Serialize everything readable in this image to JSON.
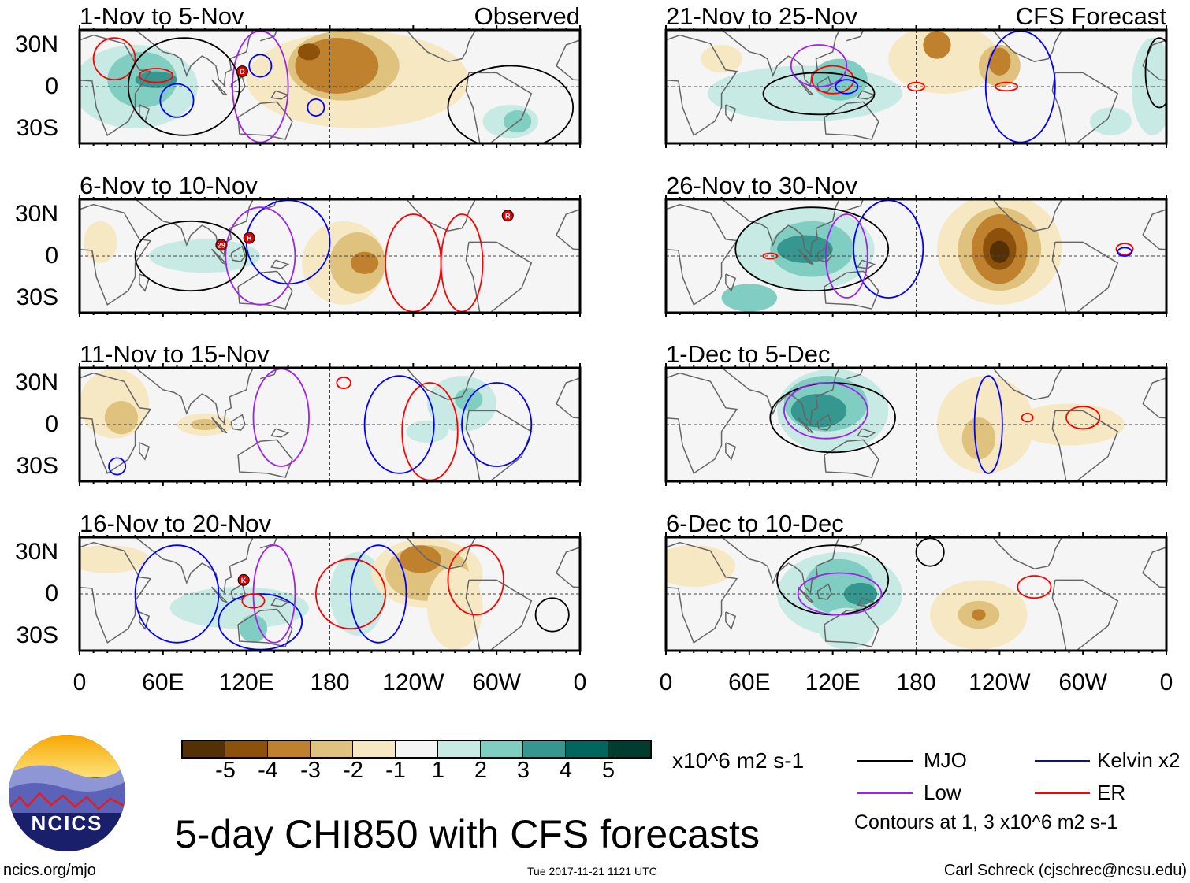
{
  "colorbar": {
    "colors": [
      "#543005",
      "#8c510a",
      "#bf812d",
      "#dfc27d",
      "#f6e8c3",
      "#f5f5f5",
      "#c7eae5",
      "#80cdc1",
      "#35978f",
      "#01665e",
      "#003c30"
    ],
    "labels": [
      "-5",
      "-4",
      "-3",
      "-2",
      "-1",
      "1",
      "2",
      "3",
      "4",
      "5"
    ],
    "units": "x10^6 m2 s-1"
  },
  "lat_labels": [
    "30N",
    "0",
    "30S"
  ],
  "lon_labels": [
    "0",
    "60E",
    "120E",
    "180",
    "120W",
    "60W",
    "0"
  ],
  "legend": {
    "mjo": {
      "label": "MJO",
      "color": "#000000"
    },
    "low": {
      "label": "Low",
      "color": "#a020f0"
    },
    "kelvin": {
      "label": "Kelvin x2",
      "color": "#0000ff"
    },
    "er": {
      "label": "ER",
      "color": "#ff0000"
    },
    "note": "Contours at 1, 3 x10^6 m2 s-1"
  },
  "title": "5-day CHI850 with CFS forecasts",
  "logo_text": "NCICS",
  "footer": {
    "url": "ncics.org/mjo",
    "timestamp": "Tue 2017-11-21 1121 UTC",
    "author": "Carl Schreck (cjschrec@ncsu.edu)"
  },
  "panels": [
    {
      "title": "1-Nov to 5-Nov",
      "tag": "Observed",
      "blobs": [
        [
          40,
          0,
          45,
          30,
          1
        ],
        [
          45,
          5,
          25,
          20,
          2
        ],
        [
          55,
          5,
          15,
          6,
          3
        ],
        [
          200,
          5,
          80,
          35,
          -1
        ],
        [
          190,
          15,
          40,
          25,
          -2
        ],
        [
          185,
          15,
          30,
          20,
          -3
        ],
        [
          165,
          25,
          8,
          6,
          -4
        ],
        [
          310,
          -25,
          20,
          12,
          1
        ],
        [
          315,
          -25,
          10,
          8,
          2
        ]
      ],
      "contours": [
        [
          55,
          8,
          12,
          5,
          "er"
        ],
        [
          25,
          20,
          15,
          15,
          "er"
        ],
        [
          70,
          -10,
          12,
          12,
          "kelvin"
        ],
        [
          130,
          0,
          20,
          40,
          "low"
        ],
        [
          130,
          15,
          8,
          8,
          "kelvin"
        ],
        [
          170,
          -15,
          6,
          6,
          "kelvin"
        ],
        [
          75,
          0,
          40,
          35,
          "mjo"
        ],
        [
          310,
          -15,
          45,
          30,
          "mjo"
        ]
      ],
      "storms": [
        [
          117,
          11,
          "D"
        ]
      ]
    },
    {
      "title": "6-Nov to 10-Nov",
      "tag": "",
      "blobs": [
        [
          90,
          0,
          40,
          12,
          1
        ],
        [
          15,
          10,
          12,
          15,
          -1
        ],
        [
          190,
          -5,
          30,
          30,
          -1
        ],
        [
          200,
          -5,
          20,
          22,
          -2
        ],
        [
          205,
          -5,
          10,
          8,
          -3
        ]
      ],
      "contours": [
        [
          240,
          -5,
          20,
          35,
          "er"
        ],
        [
          275,
          -5,
          15,
          35,
          "er"
        ],
        [
          150,
          10,
          30,
          30,
          "kelvin"
        ],
        [
          130,
          0,
          25,
          35,
          "low"
        ],
        [
          80,
          0,
          40,
          25,
          "mjo"
        ]
      ],
      "storms": [
        [
          102,
          8,
          "29"
        ],
        [
          122,
          13,
          "H"
        ],
        [
          308,
          29,
          "R"
        ]
      ]
    },
    {
      "title": "11-Nov to 15-Nov",
      "tag": "",
      "blobs": [
        [
          25,
          15,
          25,
          25,
          -1
        ],
        [
          30,
          5,
          12,
          12,
          -2
        ],
        [
          90,
          0,
          20,
          8,
          -1
        ],
        [
          90,
          0,
          10,
          4,
          -2
        ],
        [
          275,
          15,
          25,
          20,
          1
        ],
        [
          280,
          18,
          10,
          8,
          2
        ],
        [
          250,
          -5,
          15,
          8,
          1
        ]
      ],
      "contours": [
        [
          252,
          -5,
          20,
          35,
          "er"
        ],
        [
          230,
          0,
          25,
          35,
          "kelvin"
        ],
        [
          300,
          0,
          25,
          30,
          "kelvin"
        ],
        [
          145,
          5,
          20,
          35,
          "low"
        ],
        [
          190,
          30,
          5,
          4,
          "er"
        ],
        [
          27,
          -30,
          6,
          6,
          "kelvin"
        ]
      ],
      "storms": []
    },
    {
      "title": "16-Nov to 20-Nov",
      "tag": "",
      "blobs": [
        [
          115,
          -10,
          50,
          15,
          1
        ],
        [
          125,
          -25,
          10,
          10,
          2
        ],
        [
          200,
          0,
          20,
          30,
          1
        ],
        [
          250,
          15,
          40,
          25,
          -1
        ],
        [
          250,
          15,
          30,
          20,
          -2
        ],
        [
          245,
          25,
          15,
          10,
          -3
        ],
        [
          270,
          -10,
          20,
          30,
          -1
        ],
        [
          20,
          25,
          30,
          10,
          -1
        ]
      ],
      "contours": [
        [
          70,
          0,
          30,
          35,
          "kelvin"
        ],
        [
          130,
          -20,
          30,
          20,
          "kelvin"
        ],
        [
          140,
          0,
          15,
          35,
          "low"
        ],
        [
          195,
          0,
          25,
          25,
          "er"
        ],
        [
          215,
          0,
          20,
          35,
          "kelvin"
        ],
        [
          285,
          10,
          20,
          25,
          "er"
        ],
        [
          340,
          -15,
          12,
          12,
          "mjo"
        ],
        [
          125,
          -5,
          8,
          5,
          "er"
        ]
      ],
      "storms": [
        [
          118,
          10,
          "K"
        ]
      ]
    },
    {
      "title": "21-Nov to 25-Nov",
      "tag": "CFS Forecast",
      "blobs": [
        [
          100,
          -5,
          70,
          20,
          1
        ],
        [
          125,
          5,
          20,
          15,
          2
        ],
        [
          350,
          0,
          15,
          35,
          1
        ],
        [
          320,
          -25,
          15,
          10,
          1
        ],
        [
          200,
          20,
          40,
          25,
          -1
        ],
        [
          240,
          15,
          15,
          15,
          -2
        ],
        [
          240,
          18,
          8,
          10,
          -3
        ],
        [
          195,
          30,
          10,
          10,
          -3
        ],
        [
          40,
          20,
          15,
          10,
          -1
        ]
      ],
      "contours": [
        [
          255,
          0,
          25,
          40,
          "kelvin"
        ],
        [
          245,
          0,
          8,
          3,
          "er"
        ],
        [
          180,
          0,
          6,
          3,
          "er"
        ],
        [
          120,
          5,
          15,
          10,
          "er"
        ],
        [
          110,
          -5,
          40,
          15,
          "mjo"
        ],
        [
          355,
          10,
          10,
          25,
          "mjo"
        ],
        [
          110,
          15,
          20,
          15,
          "low"
        ],
        [
          130,
          0,
          8,
          5,
          "kelvin"
        ]
      ],
      "storms": []
    },
    {
      "title": "26-Nov to 30-Nov",
      "tag": "",
      "blobs": [
        [
          100,
          5,
          50,
          30,
          1
        ],
        [
          105,
          5,
          30,
          20,
          2
        ],
        [
          100,
          5,
          20,
          10,
          3
        ],
        [
          60,
          -30,
          20,
          10,
          2
        ],
        [
          240,
          5,
          45,
          40,
          -1
        ],
        [
          240,
          5,
          30,
          30,
          -2
        ],
        [
          240,
          5,
          20,
          25,
          -3
        ],
        [
          240,
          5,
          12,
          15,
          -4
        ],
        [
          240,
          3,
          7,
          8,
          -5
        ]
      ],
      "contours": [
        [
          105,
          5,
          55,
          30,
          "mjo"
        ],
        [
          160,
          5,
          25,
          35,
          "kelvin"
        ],
        [
          130,
          0,
          15,
          30,
          "low"
        ],
        [
          330,
          5,
          6,
          4,
          "er"
        ],
        [
          330,
          3,
          5,
          3,
          "kelvin"
        ],
        [
          75,
          0,
          5,
          2,
          "er"
        ]
      ],
      "storms": []
    },
    {
      "title": "1-Dec to 5-Dec",
      "tag": "",
      "blobs": [
        [
          120,
          10,
          40,
          30,
          1
        ],
        [
          115,
          15,
          30,
          20,
          2
        ],
        [
          110,
          10,
          20,
          12,
          3
        ],
        [
          230,
          0,
          35,
          35,
          -1
        ],
        [
          225,
          -10,
          12,
          15,
          -2
        ],
        [
          290,
          0,
          40,
          15,
          -1
        ]
      ],
      "contours": [
        [
          120,
          5,
          45,
          25,
          "mjo"
        ],
        [
          115,
          10,
          30,
          20,
          "low"
        ],
        [
          232,
          0,
          10,
          35,
          "kelvin"
        ],
        [
          300,
          5,
          12,
          8,
          "er"
        ],
        [
          260,
          5,
          4,
          3,
          "er"
        ]
      ],
      "storms": []
    },
    {
      "title": "6-Dec to 10-Dec",
      "tag": "",
      "blobs": [
        [
          125,
          0,
          45,
          30,
          1
        ],
        [
          125,
          5,
          25,
          20,
          2
        ],
        [
          140,
          0,
          12,
          8,
          3
        ],
        [
          225,
          -15,
          35,
          25,
          -1
        ],
        [
          225,
          -15,
          15,
          10,
          -2
        ],
        [
          225,
          -15,
          5,
          4,
          -3
        ],
        [
          20,
          20,
          30,
          15,
          -1
        ],
        [
          130,
          -25,
          20,
          15,
          1
        ]
      ],
      "contours": [
        [
          120,
          10,
          40,
          25,
          "mjo"
        ],
        [
          125,
          0,
          30,
          15,
          "low"
        ],
        [
          265,
          5,
          12,
          8,
          "er"
        ],
        [
          190,
          30,
          10,
          10,
          "mjo"
        ]
      ],
      "storms": []
    }
  ]
}
